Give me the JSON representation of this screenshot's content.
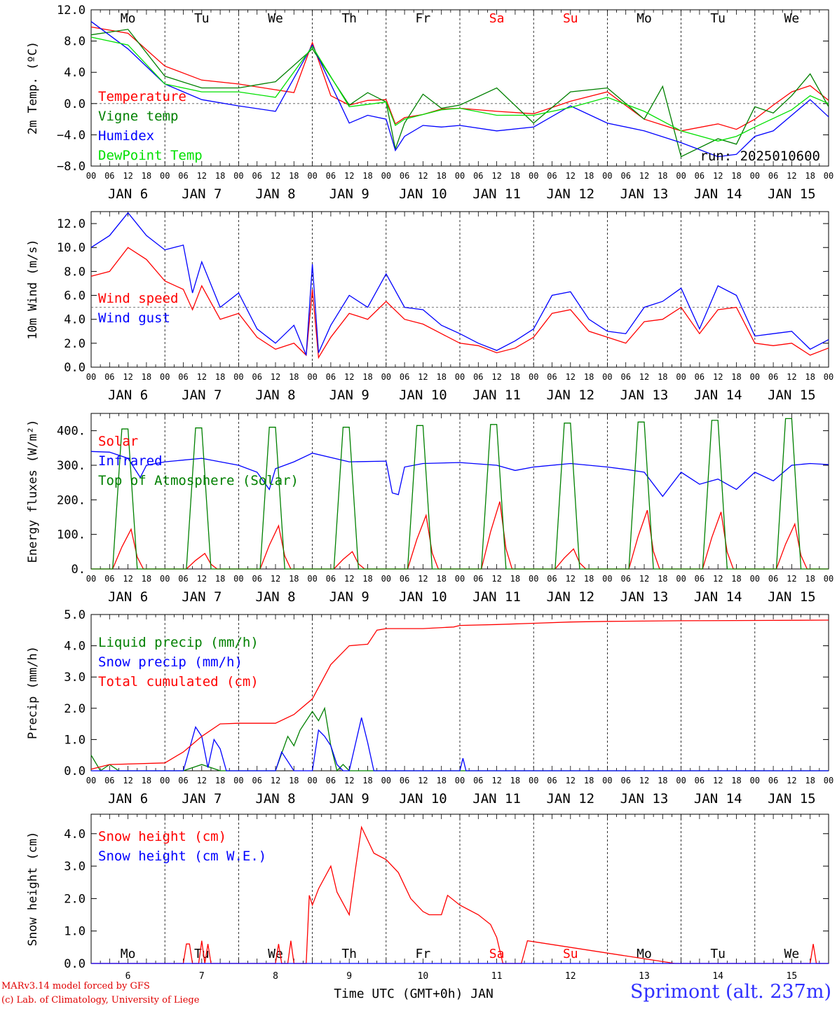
{
  "footer": {
    "credit_line1": "MARv3.14 model forced by GFS",
    "credit_line2": "(c) Lab. of Climatology, University of Liege",
    "station": "Sprimont (alt. 237m)",
    "xaxis_title": "Time UTC (GMT+0h) JAN"
  },
  "chart_data": [
    {
      "type": "line",
      "ylabel": "2m Temp. (ºC)",
      "ylim": [
        -8,
        12
      ],
      "yticks": [
        "12.0",
        "8.0",
        "4.0",
        "0.0",
        "−4.0",
        "−8.0"
      ],
      "yticks_values": [
        12,
        8,
        4,
        0,
        -4,
        -8
      ],
      "reference_line": 0,
      "run_label": "run: 2025010600",
      "weekdays": [
        "Mo",
        "Tu",
        "We",
        "Th",
        "Fr",
        "Sa",
        "Su",
        "Mo",
        "Tu",
        "We"
      ],
      "weekend_color": "#ff0000",
      "days": [
        "JAN 6",
        "JAN 7",
        "JAN 8",
        "JAN 9",
        "JAN 10",
        "JAN 11",
        "JAN 12",
        "JAN 13",
        "JAN 14",
        "JAN 15"
      ],
      "hour_ticks": [
        "00",
        "06",
        "12",
        "18"
      ],
      "x_unit": "hours since JAN 6 00 UTC",
      "series": [
        {
          "name": "Temperature",
          "color": "#ff0000",
          "x": [
            0,
            12,
            24,
            36,
            48,
            66,
            72,
            78,
            84,
            90,
            96,
            99,
            102,
            108,
            114,
            120,
            132,
            144,
            156,
            168,
            180,
            192,
            204,
            210,
            216,
            222,
            228,
            234,
            240
          ],
          "y": [
            9.8,
            9.0,
            4.8,
            3.0,
            2.5,
            1.4,
            7.8,
            1.0,
            -0.2,
            0.4,
            0.5,
            -2.6,
            -1.8,
            -1.4,
            -0.7,
            -0.6,
            -1.0,
            -1.3,
            0.3,
            1.5,
            -2.0,
            -3.5,
            -2.6,
            -3.3,
            -2.0,
            -0.2,
            1.5,
            2.3,
            0.4
          ]
        },
        {
          "name": "Vigne temp",
          "color": "#008000",
          "x": [
            0,
            12,
            24,
            36,
            48,
            60,
            72,
            84,
            90,
            96,
            99,
            102,
            108,
            114,
            120,
            132,
            144,
            156,
            168,
            180,
            186,
            192,
            204,
            210,
            216,
            222,
            228,
            234,
            240
          ],
          "y": [
            8.8,
            9.5,
            3.5,
            2.0,
            2.0,
            2.8,
            7.0,
            -0.2,
            1.4,
            0.2,
            -5.8,
            -2.5,
            1.2,
            -0.6,
            -0.2,
            2.0,
            -2.5,
            1.5,
            2.0,
            -2.0,
            2.2,
            -6.8,
            -4.5,
            -5.2,
            -0.4,
            -1.2,
            1.0,
            3.8,
            -0.4
          ]
        },
        {
          "name": "Humidex",
          "color": "#0000ff",
          "x": [
            0,
            12,
            24,
            36,
            48,
            60,
            72,
            84,
            90,
            96,
            99,
            102,
            108,
            114,
            120,
            132,
            144,
            156,
            168,
            180,
            192,
            204,
            210,
            216,
            222,
            228,
            234,
            240
          ],
          "y": [
            10.5,
            7.0,
            2.5,
            0.5,
            -0.3,
            -1.0,
            7.5,
            -2.5,
            -1.5,
            -2.0,
            -6.0,
            -4.2,
            -2.8,
            -3.0,
            -2.8,
            -3.5,
            -3.0,
            -0.3,
            -2.5,
            -3.5,
            -5.0,
            -6.8,
            -6.5,
            -4.2,
            -3.5,
            -1.5,
            0.5,
            -1.7
          ]
        },
        {
          "name": "DewPoint Temp",
          "color": "#00e000",
          "x": [
            0,
            12,
            24,
            36,
            48,
            60,
            72,
            84,
            96,
            99,
            102,
            114,
            120,
            132,
            144,
            156,
            168,
            180,
            192,
            204,
            210,
            216,
            228,
            234,
            240
          ],
          "y": [
            8.5,
            7.5,
            2.5,
            1.5,
            1.5,
            0.8,
            7.3,
            -0.4,
            0.2,
            -2.8,
            -2.0,
            -0.8,
            -0.6,
            -1.5,
            -1.5,
            -0.5,
            0.8,
            -1.0,
            -3.5,
            -4.8,
            -4.2,
            -3.0,
            -0.8,
            1.0,
            0.0
          ]
        }
      ]
    },
    {
      "type": "line",
      "ylabel": "10m Wind (m/s)",
      "ylim": [
        0,
        13
      ],
      "yticks": [
        "12.0",
        "10.0",
        "8.0",
        "6.0",
        "4.0",
        "2.0",
        "0.0"
      ],
      "yticks_values": [
        12,
        10,
        8,
        6,
        4,
        2,
        0
      ],
      "reference_line": 5,
      "days": [
        "JAN 6",
        "JAN 7",
        "JAN 8",
        "JAN 9",
        "JAN 10",
        "JAN 11",
        "JAN 12",
        "JAN 13",
        "JAN 14",
        "JAN 15"
      ],
      "hour_ticks": [
        "00",
        "06",
        "12",
        "18"
      ],
      "series": [
        {
          "name": "Wind speed",
          "color": "#ff0000",
          "x": [
            0,
            6,
            12,
            18,
            24,
            30,
            33,
            36,
            42,
            48,
            54,
            60,
            66,
            70,
            72,
            74,
            78,
            84,
            90,
            96,
            102,
            108,
            114,
            120,
            126,
            132,
            138,
            144,
            150,
            156,
            162,
            168,
            174,
            180,
            186,
            192,
            198,
            204,
            210,
            216,
            222,
            228,
            234,
            240
          ],
          "y": [
            7.6,
            8.0,
            10.0,
            9.0,
            7.2,
            6.5,
            4.8,
            6.8,
            4.0,
            4.5,
            2.5,
            1.5,
            2.0,
            1.0,
            6.5,
            0.8,
            2.5,
            4.5,
            4.0,
            5.5,
            4.0,
            3.6,
            2.8,
            2.0,
            1.8,
            1.2,
            1.6,
            2.5,
            4.5,
            4.8,
            3.0,
            2.5,
            2.0,
            3.8,
            4.0,
            5.0,
            2.8,
            4.8,
            5.0,
            2.0,
            1.8,
            2.0,
            1.0,
            1.6
          ]
        },
        {
          "name": "Wind gust",
          "color": "#0000ff",
          "x": [
            0,
            6,
            12,
            18,
            24,
            30,
            33,
            36,
            42,
            48,
            54,
            60,
            66,
            70,
            72,
            74,
            78,
            84,
            90,
            96,
            102,
            108,
            114,
            120,
            126,
            132,
            138,
            144,
            150,
            156,
            162,
            168,
            174,
            180,
            186,
            192,
            198,
            204,
            210,
            216,
            222,
            228,
            234,
            240
          ],
          "y": [
            10.0,
            11.0,
            12.9,
            11.0,
            9.8,
            10.2,
            6.2,
            8.8,
            5.0,
            6.2,
            3.2,
            2.0,
            3.5,
            1.0,
            8.6,
            1.2,
            3.5,
            6.0,
            5.0,
            7.8,
            5.0,
            4.8,
            3.5,
            2.8,
            2.0,
            1.4,
            2.2,
            3.2,
            6.0,
            6.3,
            4.0,
            3.0,
            2.8,
            5.0,
            5.5,
            6.6,
            3.2,
            6.8,
            6.0,
            2.6,
            2.8,
            3.0,
            1.5,
            2.3
          ]
        }
      ]
    },
    {
      "type": "line",
      "ylabel": "Energy fluxes (W/m²)",
      "ylim": [
        0,
        450
      ],
      "yticks": [
        "400.",
        "300.",
        "200.",
        "100.",
        "0."
      ],
      "yticks_values": [
        400,
        300,
        200,
        100,
        0
      ],
      "days": [
        "JAN 6",
        "JAN 7",
        "JAN 8",
        "JAN 9",
        "JAN 10",
        "JAN 11",
        "JAN 12",
        "JAN 13",
        "JAN 14",
        "JAN 15"
      ],
      "hour_ticks": [
        "00",
        "06",
        "12",
        "18"
      ],
      "solar_peaks": [
        115,
        45,
        125,
        50,
        155,
        195,
        58,
        170,
        165,
        130
      ],
      "toa_peaks": [
        405,
        408,
        410,
        410,
        415,
        418,
        422,
        425,
        430,
        435
      ],
      "series": [
        {
          "name": "Solar",
          "color": "#ff0000",
          "values_ref": "solar_peaks"
        },
        {
          "name": "Infrared",
          "color": "#0000ff",
          "x": [
            0,
            6,
            12,
            16,
            18,
            24,
            36,
            48,
            54,
            58,
            60,
            66,
            72,
            84,
            96,
            98,
            100,
            102,
            108,
            120,
            132,
            138,
            144,
            156,
            168,
            174,
            180,
            186,
            192,
            198,
            204,
            210,
            216,
            222,
            228,
            234,
            240
          ],
          "y": [
            340,
            338,
            320,
            265,
            300,
            310,
            320,
            300,
            280,
            230,
            290,
            310,
            335,
            310,
            312,
            220,
            215,
            295,
            305,
            308,
            300,
            285,
            295,
            305,
            295,
            288,
            280,
            210,
            280,
            245,
            260,
            230,
            280,
            255,
            300,
            305,
            302
          ]
        },
        {
          "name": "Top of Atmosphere (Solar)",
          "color": "#008000",
          "values_ref": "toa_peaks"
        }
      ]
    },
    {
      "type": "line",
      "ylabel": "Precip (mm/h)",
      "ylim": [
        0,
        5
      ],
      "yticks": [
        "5.0",
        "4.0",
        "3.0",
        "2.0",
        "1.0",
        "0.0"
      ],
      "yticks_values": [
        5,
        4,
        3,
        2,
        1,
        0
      ],
      "days": [
        "JAN 6",
        "JAN 7",
        "JAN 8",
        "JAN 9",
        "JAN 10",
        "JAN 11",
        "JAN 12",
        "JAN 13",
        "JAN 14",
        "JAN 15"
      ],
      "hour_ticks": [
        "00",
        "06",
        "12",
        "18"
      ],
      "series": [
        {
          "name": "Liquid precip (mm/h)",
          "color": "#008000",
          "x": [
            0,
            3,
            6,
            9,
            12,
            30,
            36,
            42,
            48,
            60,
            64,
            66,
            68,
            72,
            74,
            76,
            78,
            80,
            82,
            84,
            96,
            240
          ],
          "y": [
            0.5,
            0.0,
            0.2,
            0.0,
            0.0,
            0.0,
            0.2,
            0.0,
            0.0,
            0.0,
            1.1,
            0.8,
            1.3,
            1.9,
            1.6,
            2.0,
            0.8,
            0.0,
            0.2,
            0.0,
            0.0,
            0.0
          ]
        },
        {
          "name": "Snow precip (mm/h)",
          "color": "#0000ff",
          "x": [
            0,
            30,
            34,
            36,
            38,
            40,
            42,
            44,
            48,
            60,
            62,
            66,
            70,
            72,
            74,
            76,
            78,
            80,
            82,
            84,
            88,
            90,
            92,
            96,
            120,
            121,
            122,
            240
          ],
          "y": [
            0.0,
            0.0,
            1.4,
            1.1,
            0.1,
            1.0,
            0.7,
            0.0,
            0.0,
            0.0,
            0.6,
            0.0,
            0.0,
            0.0,
            1.3,
            1.1,
            0.8,
            0.2,
            0.0,
            0.0,
            1.7,
            0.9,
            0.0,
            0.0,
            0.0,
            0.4,
            0.0,
            0.0
          ]
        },
        {
          "name": "Total cumulated (cm)",
          "color": "#ff0000",
          "x": [
            0,
            6,
            24,
            30,
            36,
            42,
            48,
            60,
            66,
            72,
            78,
            84,
            90,
            93,
            96,
            108,
            118,
            120,
            132,
            144,
            156,
            168,
            192,
            216,
            240
          ],
          "y": [
            0.05,
            0.2,
            0.25,
            0.6,
            1.1,
            1.5,
            1.52,
            1.52,
            1.8,
            2.3,
            3.4,
            4.0,
            4.05,
            4.5,
            4.55,
            4.55,
            4.6,
            4.65,
            4.68,
            4.72,
            4.76,
            4.78,
            4.8,
            4.81,
            4.82
          ]
        }
      ]
    },
    {
      "type": "line",
      "ylabel": "Snow height (cm)",
      "ylim": [
        0,
        4.6
      ],
      "yticks": [
        "4.0",
        "3.0",
        "2.0",
        "1.0",
        "0.0"
      ],
      "yticks_values": [
        4,
        3,
        2,
        1,
        0
      ],
      "weekdays": [
        "Mo",
        "Tu",
        "We",
        "Th",
        "Fr",
        "Sa",
        "Su",
        "Mo",
        "Tu",
        "We"
      ],
      "weekend_color": "#ff0000",
      "day_numbers": [
        "6",
        "7",
        "8",
        "9",
        "10",
        "11",
        "12",
        "13",
        "14",
        "15"
      ],
      "series": [
        {
          "name": "Snow height (cm)",
          "color": "#ff0000",
          "x": [
            0,
            30,
            31,
            32,
            33,
            34,
            35,
            36,
            37,
            38,
            39,
            40,
            60,
            61,
            62,
            63,
            64,
            65,
            66,
            70,
            71,
            72,
            74,
            78,
            80,
            84,
            86,
            88,
            90,
            92,
            96,
            100,
            104,
            108,
            110,
            114,
            116,
            120,
            126,
            130,
            132,
            134,
            136,
            140,
            142,
            190,
            234,
            235,
            236,
            240
          ],
          "y": [
            0,
            0,
            0.6,
            0.6,
            0,
            0,
            0,
            0.7,
            0,
            0.6,
            0,
            0,
            0,
            0.6,
            0,
            0,
            0,
            0.7,
            0,
            0,
            2.1,
            1.8,
            2.3,
            3.0,
            2.2,
            1.5,
            2.9,
            4.2,
            3.8,
            3.4,
            3.2,
            2.8,
            2.0,
            1.6,
            1.5,
            1.5,
            2.1,
            1.8,
            1.5,
            1.2,
            0.8,
            0,
            0,
            0,
            0.7,
            0,
            0,
            0.6,
            0,
            0
          ]
        },
        {
          "name": "Snow height (cm W.E.)",
          "color": "#0000ff",
          "x": [
            0,
            240
          ],
          "y": [
            0,
            0
          ]
        }
      ]
    }
  ]
}
